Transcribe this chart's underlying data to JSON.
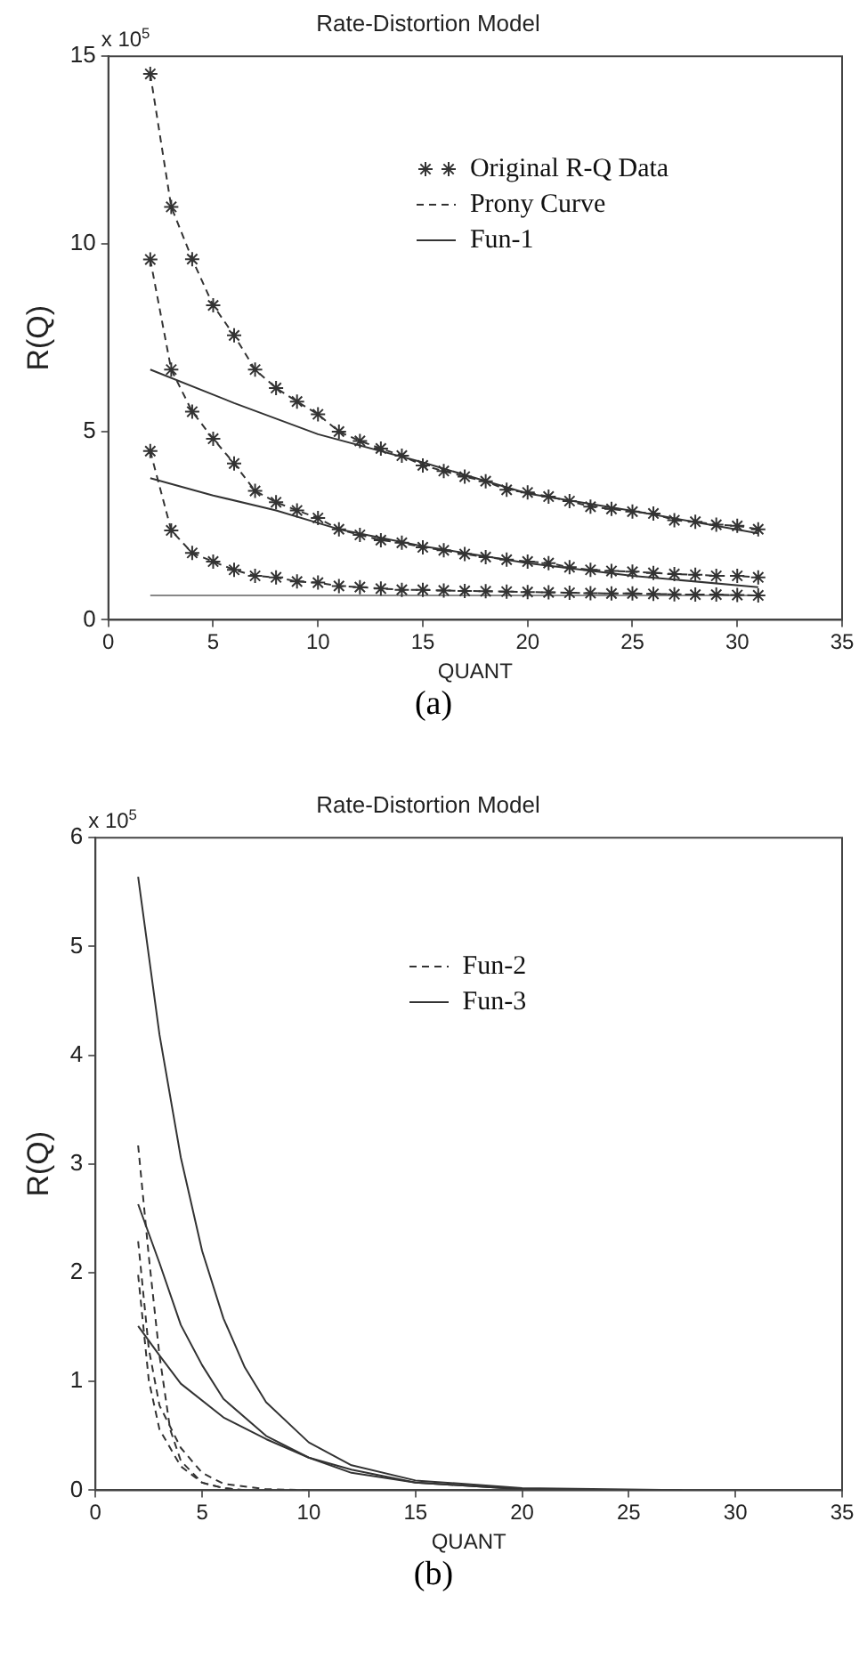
{
  "chart_data": [
    {
      "type": "line",
      "title": "Rate-Distortion Model",
      "xlabel": "QUANT",
      "ylabel": "R(Q)",
      "annotations": [
        "x 10$^{5}$",
        "(a)"
      ],
      "xlim": [
        0,
        35
      ],
      "xticks": [
        0,
        5,
        10,
        15,
        20,
        25,
        30,
        35
      ],
      "ylim": [
        0,
        15
      ],
      "yticks": [
        0,
        5,
        10,
        15
      ],
      "legend": "top right",
      "x": [
        2,
        3,
        4,
        5,
        6,
        7,
        8,
        9,
        10,
        11,
        12,
        13,
        14,
        15,
        16,
        17,
        18,
        19,
        20,
        21,
        22,
        23,
        24,
        25,
        26,
        27,
        28,
        29,
        30,
        31
      ],
      "series": [
        {
          "name": "Original R-Q Data",
          "type": "scatter",
          "marker": "cross",
          "color": "#333333",
          "values": [
            14.53,
            10.99,
            9.6,
            8.37,
            7.57,
            6.66,
            6.17,
            5.81,
            5.47,
            5.01,
            4.76,
            4.56,
            4.37,
            4.11,
            3.96,
            3.81,
            3.69,
            3.46,
            3.39,
            3.28,
            3.16,
            3.01,
            2.95,
            2.88,
            2.83,
            2.65,
            2.61,
            2.53,
            2.5,
            2.41
          ]
        },
        {
          "type": "scatter",
          "marker": "cross",
          "color": "#333333",
          "values": [
            9.59,
            6.66,
            5.54,
            4.82,
            4.16,
            3.43,
            3.13,
            2.91,
            2.71,
            2.41,
            2.26,
            2.12,
            2.05,
            1.93,
            1.85,
            1.75,
            1.67,
            1.6,
            1.55,
            1.51,
            1.4,
            1.33,
            1.3,
            1.28,
            1.25,
            1.22,
            1.2,
            1.17,
            1.17,
            1.13
          ]
        },
        {
          "type": "scatter",
          "marker": "cross",
          "color": "#333333",
          "values": [
            4.49,
            2.38,
            1.78,
            1.55,
            1.33,
            1.17,
            1.13,
            1.02,
            0.99,
            0.9,
            0.87,
            0.83,
            0.8,
            0.8,
            0.78,
            0.77,
            0.76,
            0.75,
            0.74,
            0.73,
            0.72,
            0.71,
            0.7,
            0.7,
            0.69,
            0.68,
            0.67,
            0.67,
            0.66,
            0.65
          ]
        },
        {
          "name": "Prony Curve",
          "type": "line",
          "line_style": "dashed",
          "color": "#333333",
          "values": [
            14.53,
            10.99,
            9.6,
            8.37,
            7.57,
            6.66,
            6.17,
            5.81,
            5.47,
            5.01,
            4.76,
            4.56,
            4.37,
            4.11,
            3.96,
            3.81,
            3.69,
            3.46,
            3.39,
            3.28,
            3.16,
            3.01,
            2.95,
            2.88,
            2.83,
            2.65,
            2.61,
            2.53,
            2.5,
            2.41
          ]
        },
        {
          "type": "line",
          "line_style": "dashed",
          "color": "#333333",
          "values": [
            9.59,
            6.66,
            5.54,
            4.82,
            4.16,
            3.43,
            3.13,
            2.91,
            2.71,
            2.41,
            2.26,
            2.12,
            2.05,
            1.93,
            1.85,
            1.75,
            1.67,
            1.6,
            1.55,
            1.51,
            1.4,
            1.33,
            1.3,
            1.28,
            1.25,
            1.22,
            1.2,
            1.17,
            1.17,
            1.13
          ]
        },
        {
          "type": "line",
          "line_style": "dashed",
          "color": "#333333",
          "values": [
            4.49,
            2.38,
            1.78,
            1.55,
            1.33,
            1.17,
            1.13,
            1.02,
            0.99,
            0.9,
            0.87,
            0.83,
            0.8,
            0.8,
            0.78,
            0.77,
            0.76,
            0.75,
            0.74,
            0.73,
            0.72,
            0.71,
            0.7,
            0.7,
            0.69,
            0.68,
            0.67,
            0.67,
            0.66,
            0.65
          ]
        },
        {
          "name": "Fun-1",
          "type": "line",
          "line_style": "solid",
          "color": "#333333",
          "x": [
            2,
            6,
            10,
            15,
            20,
            25,
            31
          ],
          "values": [
            6.66,
            5.77,
            4.94,
            4.19,
            3.36,
            2.9,
            2.3
          ]
        },
        {
          "type": "line",
          "line_style": "solid",
          "color": "#333333",
          "x": [
            2,
            5,
            8,
            11,
            15,
            20,
            25,
            31
          ],
          "values": [
            3.77,
            3.31,
            2.91,
            2.41,
            1.96,
            1.51,
            1.17,
            0.87
          ]
        },
        {
          "type": "line",
          "line_style": "solid",
          "color": "#888888",
          "x": [
            2,
            31
          ],
          "values": [
            0.65,
            0.65
          ]
        }
      ]
    },
    {
      "type": "line",
      "title": "Rate-Distortion Model",
      "xlabel": "QUANT",
      "ylabel": "R(Q)",
      "annotations": [
        "x 10$^{5}$",
        "(b)"
      ],
      "xlim": [
        0,
        35
      ],
      "xticks": [
        0,
        5,
        10,
        15,
        20,
        25,
        30,
        35
      ],
      "ylim": [
        0,
        6
      ],
      "yticks": [
        0,
        1,
        2,
        3,
        4,
        5,
        6
      ],
      "legend": "top right",
      "series": [
        {
          "name": "Fun-2",
          "type": "line",
          "line_style": "dashed",
          "color": "#333333",
          "x": [
            2,
            2.5,
            3,
            3.5,
            4,
            5,
            6,
            7
          ],
          "values": [
            3.17,
            2.15,
            1.24,
            0.56,
            0.27,
            0.07,
            0.02,
            0
          ]
        },
        {
          "type": "line",
          "line_style": "dashed",
          "color": "#333333",
          "x": [
            2,
            2.5,
            3,
            4,
            5,
            6,
            8,
            10
          ],
          "values": [
            2.29,
            1.3,
            0.78,
            0.39,
            0.16,
            0.06,
            0.01,
            0
          ]
        },
        {
          "type": "line",
          "line_style": "dashed",
          "color": "#333333",
          "x": [
            2,
            2.5,
            3,
            4,
            5,
            6,
            7
          ],
          "values": [
            1.98,
            1.01,
            0.56,
            0.22,
            0.07,
            0.02,
            0
          ]
        },
        {
          "name": "Fun-3",
          "type": "line",
          "line_style": "solid",
          "color": "#333333",
          "x": [
            2,
            3,
            4,
            5,
            6,
            7,
            8,
            10,
            12,
            15,
            20,
            27.5
          ],
          "values": [
            5.64,
            4.19,
            3.06,
            2.2,
            1.58,
            1.13,
            0.81,
            0.44,
            0.23,
            0.09,
            0.02,
            0
          ]
        },
        {
          "type": "line",
          "line_style": "solid",
          "color": "#333333",
          "x": [
            2,
            3,
            4,
            5,
            6,
            8,
            10,
            12,
            15,
            20,
            25
          ],
          "values": [
            2.63,
            2.09,
            1.52,
            1.15,
            0.84,
            0.5,
            0.3,
            0.16,
            0.07,
            0.01,
            0
          ]
        },
        {
          "type": "line",
          "line_style": "solid",
          "color": "#333333",
          "x": [
            2,
            3,
            4,
            6,
            8,
            10,
            12,
            15,
            20,
            25
          ],
          "values": [
            1.51,
            1.24,
            0.98,
            0.67,
            0.47,
            0.3,
            0.19,
            0.07,
            0.01,
            0
          ]
        }
      ]
    }
  ]
}
